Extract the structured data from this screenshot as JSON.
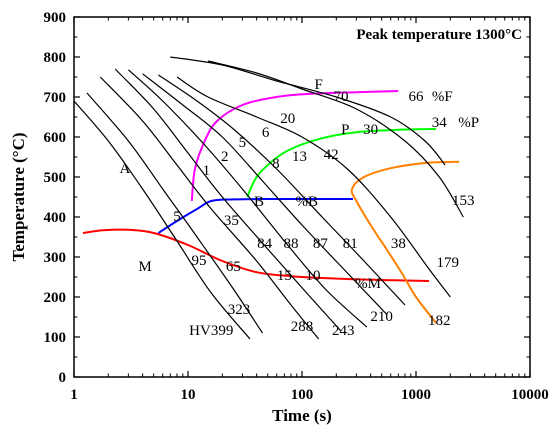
{
  "chart_data": {
    "type": "line",
    "title": "Peak temperature 1300°C",
    "xlabel": "Time (s)",
    "ylabel": "Temperature (°C)",
    "xscale": "log",
    "xlim": [
      1,
      10000
    ],
    "ylim": [
      0,
      900
    ],
    "x_tick_labels": [
      "1",
      "10",
      "100",
      "1000",
      "10000"
    ],
    "y_tick_labels": [
      "0",
      "100",
      "200",
      "300",
      "400",
      "500",
      "600",
      "700",
      "800",
      "900"
    ],
    "grid": false,
    "colors": {
      "ferrite_start": "#ff00ff",
      "pearlite_start": "#00ff00",
      "bainite_start": "#0000ff",
      "martensite_start": "#ff0000",
      "transformation_end": "#ff8000",
      "cooling_curves": "#000000"
    },
    "series": [
      {
        "role": "ferrite-start",
        "color": "#ff00ff",
        "points": [
          [
            10.8,
            440
          ],
          [
            11.5,
            520
          ],
          [
            14,
            590
          ],
          [
            18,
            640
          ],
          [
            30,
            680
          ],
          [
            60,
            700
          ],
          [
            120,
            708
          ],
          [
            300,
            712
          ],
          [
            700,
            715
          ]
        ]
      },
      {
        "role": "pearlite-start",
        "color": "#00ff00",
        "points": [
          [
            33,
            450
          ],
          [
            40,
            500
          ],
          [
            55,
            540
          ],
          [
            80,
            570
          ],
          [
            150,
            597
          ],
          [
            300,
            612
          ],
          [
            700,
            618
          ],
          [
            1500,
            620
          ]
        ]
      },
      {
        "role": "bainite-start",
        "color": "#0000ff",
        "points": [
          [
            5.5,
            360
          ],
          [
            8,
            390
          ],
          [
            12,
            420
          ],
          [
            16,
            440
          ],
          [
            25,
            444
          ],
          [
            50,
            445
          ],
          [
            120,
            445
          ],
          [
            280,
            445
          ]
        ]
      },
      {
        "role": "martensite-start",
        "color": "#ff0000",
        "points": [
          [
            1.2,
            360
          ],
          [
            1.8,
            367
          ],
          [
            3,
            368
          ],
          [
            5,
            360
          ],
          [
            10,
            330
          ],
          [
            20,
            290
          ],
          [
            40,
            262
          ],
          [
            80,
            252
          ],
          [
            200,
            246
          ],
          [
            600,
            242
          ],
          [
            1300,
            240
          ]
        ]
      },
      {
        "role": "transformation-end",
        "color": "#ff8000",
        "points": [
          [
            2400,
            538
          ],
          [
            1200,
            535
          ],
          [
            600,
            522
          ],
          [
            350,
            500
          ],
          [
            275,
            470
          ],
          [
            300,
            440
          ],
          [
            400,
            380
          ],
          [
            550,
            320
          ],
          [
            750,
            260
          ],
          [
            1000,
            200
          ],
          [
            1500,
            135
          ]
        ]
      },
      {
        "role": "cooling-curve",
        "points": [
          [
            1.0,
            690
          ],
          [
            2,
            590
          ],
          [
            4,
            470
          ],
          [
            8,
            340
          ],
          [
            16,
            210
          ],
          [
            35,
            95
          ]
        ]
      },
      {
        "role": "cooling-curve",
        "points": [
          [
            1.3,
            710
          ],
          [
            3,
            590
          ],
          [
            6,
            470
          ],
          [
            12,
            350
          ],
          [
            25,
            220
          ],
          [
            45,
            110
          ]
        ]
      },
      {
        "role": "cooling-curve",
        "points": [
          [
            1.7,
            750
          ],
          [
            4,
            640
          ],
          [
            8,
            530
          ],
          [
            16,
            420
          ],
          [
            40,
            290
          ],
          [
            80,
            180
          ],
          [
            140,
            95
          ]
        ]
      },
      {
        "role": "cooling-curve",
        "points": [
          [
            2.3,
            770
          ],
          [
            5,
            670
          ],
          [
            10,
            560
          ],
          [
            20,
            450
          ],
          [
            50,
            320
          ],
          [
            110,
            210
          ],
          [
            220,
            115
          ]
        ]
      },
      {
        "role": "cooling-curve",
        "points": [
          [
            3,
            768
          ],
          [
            6,
            690
          ],
          [
            14,
            580
          ],
          [
            30,
            470
          ],
          [
            70,
            340
          ],
          [
            160,
            220
          ],
          [
            370,
            125
          ]
        ]
      },
      {
        "role": "cooling-curve",
        "points": [
          [
            4,
            758
          ],
          [
            9,
            680
          ],
          [
            20,
            600
          ],
          [
            45,
            490
          ],
          [
            100,
            380
          ],
          [
            250,
            260
          ],
          [
            560,
            155
          ]
        ]
      },
      {
        "role": "cooling-curve",
        "points": [
          [
            5.5,
            755
          ],
          [
            12,
            690
          ],
          [
            25,
            620
          ],
          [
            60,
            520
          ],
          [
            150,
            400
          ],
          [
            350,
            290
          ],
          [
            800,
            180
          ]
        ]
      },
      {
        "role": "cooling-curve",
        "points": [
          [
            8,
            750
          ],
          [
            15,
            700
          ],
          [
            40,
            650
          ],
          [
            100,
            600
          ],
          [
            250,
            520
          ],
          [
            600,
            400
          ],
          [
            1300,
            270
          ],
          [
            2000,
            200
          ]
        ]
      },
      {
        "role": "cooling-curve",
        "points": [
          [
            15,
            790
          ],
          [
            40,
            760
          ],
          [
            100,
            720
          ],
          [
            300,
            670
          ],
          [
            800,
            590
          ],
          [
            1600,
            500
          ],
          [
            2600,
            400
          ]
        ]
      },
      {
        "role": "cooling-curve",
        "points": [
          [
            7,
            800
          ],
          [
            20,
            780
          ],
          [
            60,
            740
          ],
          [
            200,
            700
          ],
          [
            600,
            650
          ],
          [
            1200,
            590
          ],
          [
            1800,
            530
          ]
        ]
      }
    ],
    "annotations": [
      {
        "text": "F",
        "x": 140,
        "y": 720
      },
      {
        "text": "70",
        "x": 220,
        "y": 690
      },
      {
        "text": "66",
        "x": 1000,
        "y": 690
      },
      {
        "text": "%F",
        "x": 1700,
        "y": 690
      },
      {
        "text": "20",
        "x": 75,
        "y": 635
      },
      {
        "text": "34",
        "x": 1600,
        "y": 625
      },
      {
        "text": "%P",
        "x": 2900,
        "y": 625
      },
      {
        "text": "6",
        "x": 48,
        "y": 600
      },
      {
        "text": "P",
        "x": 240,
        "y": 607
      },
      {
        "text": "30",
        "x": 400,
        "y": 607
      },
      {
        "text": "5",
        "x": 30,
        "y": 575
      },
      {
        "text": "2",
        "x": 21,
        "y": 540
      },
      {
        "text": "8",
        "x": 59,
        "y": 522
      },
      {
        "text": "13",
        "x": 95,
        "y": 540
      },
      {
        "text": "42",
        "x": 180,
        "y": 545
      },
      {
        "text": "1",
        "x": 14.5,
        "y": 505
      },
      {
        "text": "A",
        "x": 2.8,
        "y": 510
      },
      {
        "text": "153",
        "x": 2600,
        "y": 430
      },
      {
        "text": "B",
        "x": 42,
        "y": 428
      },
      {
        "text": "%B",
        "x": 110,
        "y": 428
      },
      {
        "text": "5",
        "x": 8,
        "y": 390
      },
      {
        "text": "35",
        "x": 24,
        "y": 380
      },
      {
        "text": "84",
        "x": 47,
        "y": 322
      },
      {
        "text": "88",
        "x": 80,
        "y": 322
      },
      {
        "text": "87",
        "x": 145,
        "y": 322
      },
      {
        "text": "81",
        "x": 265,
        "y": 322
      },
      {
        "text": "38",
        "x": 700,
        "y": 322
      },
      {
        "text": "95",
        "x": 12.5,
        "y": 280
      },
      {
        "text": "179",
        "x": 1900,
        "y": 275
      },
      {
        "text": "M",
        "x": 4.2,
        "y": 265
      },
      {
        "text": "65",
        "x": 25,
        "y": 265
      },
      {
        "text": "15",
        "x": 70,
        "y": 242
      },
      {
        "text": "10",
        "x": 125,
        "y": 242
      },
      {
        "text": "%M",
        "x": 380,
        "y": 222
      },
      {
        "text": "323",
        "x": 28,
        "y": 158
      },
      {
        "text": "288",
        "x": 100,
        "y": 115
      },
      {
        "text": "210",
        "x": 500,
        "y": 140
      },
      {
        "text": "182",
        "x": 1600,
        "y": 130
      },
      {
        "text": "HV399",
        "x": 16,
        "y": 105
      },
      {
        "text": "243",
        "x": 230,
        "y": 105
      }
    ]
  }
}
